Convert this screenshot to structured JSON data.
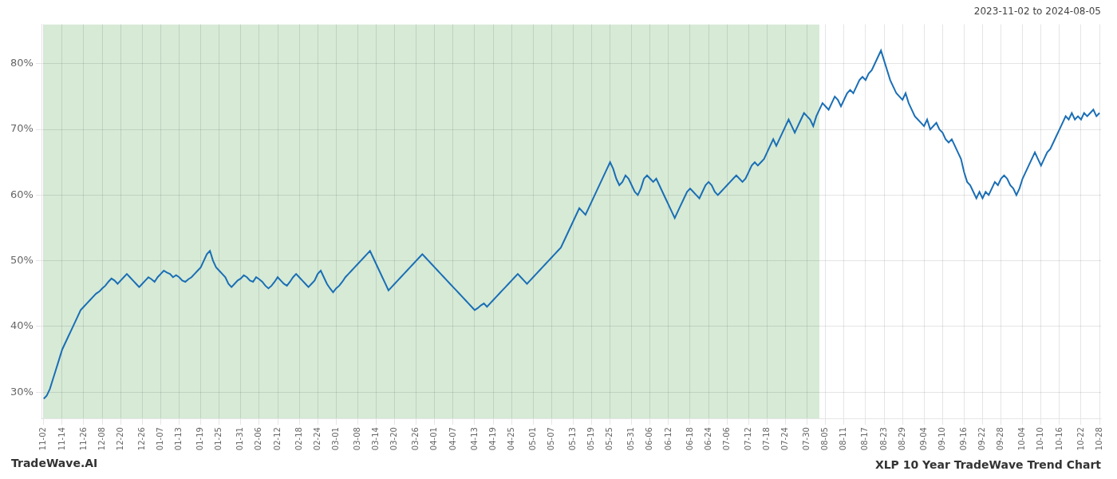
{
  "chart_data": {
    "type": "line",
    "title": "XLP 10 Year TradeWave Trend Chart",
    "subtitle": "2023-11-02 to 2024-08-05",
    "annotations": [
      "TradeWave.AI"
    ],
    "color": "#1a6eb5",
    "grid": true,
    "ylim": [
      26,
      86
    ],
    "yticks": [
      {
        "value": 30,
        "label": "30%"
      },
      {
        "value": 40,
        "label": "40%"
      },
      {
        "value": 50,
        "label": "50%"
      },
      {
        "value": 60,
        "label": "60%"
      },
      {
        "value": 70,
        "label": "70%"
      },
      {
        "value": 80,
        "label": "80%"
      }
    ],
    "shaded_region": {
      "from": 0,
      "to": 252,
      "color": "#d6ead6"
    },
    "categories": [
      "11-02",
      null,
      null,
      null,
      null,
      null,
      "11-14",
      null,
      null,
      null,
      null,
      null,
      null,
      "11-26",
      null,
      null,
      null,
      null,
      null,
      "12-08",
      null,
      null,
      null,
      null,
      null,
      "12-20",
      null,
      null,
      null,
      null,
      null,
      null,
      "12-26",
      null,
      null,
      null,
      null,
      null,
      "01-07",
      null,
      null,
      null,
      null,
      null,
      "01-13",
      null,
      null,
      null,
      null,
      null,
      null,
      "01-19",
      null,
      null,
      null,
      null,
      null,
      "01-25",
      null,
      null,
      null,
      null,
      null,
      null,
      "01-31",
      null,
      null,
      null,
      null,
      null,
      "02-06",
      null,
      null,
      null,
      null,
      null,
      "02-12",
      null,
      null,
      null,
      null,
      null,
      null,
      "02-18",
      null,
      null,
      null,
      null,
      null,
      "02-24",
      null,
      null,
      null,
      null,
      null,
      "03-01",
      null,
      null,
      null,
      null,
      null,
      null,
      "03-08",
      null,
      null,
      null,
      null,
      null,
      "03-14",
      null,
      null,
      null,
      null,
      null,
      "03-20",
      null,
      null,
      null,
      null,
      null,
      null,
      "03-26",
      null,
      null,
      null,
      null,
      null,
      "04-01",
      null,
      null,
      null,
      null,
      null,
      "04-07",
      null,
      null,
      null,
      null,
      null,
      null,
      "04-13",
      null,
      null,
      null,
      null,
      null,
      "04-19",
      null,
      null,
      null,
      null,
      null,
      "04-25",
      null,
      null,
      null,
      null,
      null,
      null,
      "05-01",
      null,
      null,
      null,
      null,
      null,
      "05-07",
      null,
      null,
      null,
      null,
      null,
      null,
      "05-13",
      null,
      null,
      null,
      null,
      null,
      "05-19",
      null,
      null,
      null,
      null,
      null,
      "05-25",
      null,
      null,
      null,
      null,
      null,
      null,
      "05-31",
      null,
      null,
      null,
      null,
      null,
      "06-06",
      null,
      null,
      null,
      null,
      null,
      "06-12",
      null,
      null,
      null,
      null,
      null,
      null,
      "06-18",
      null,
      null,
      null,
      null,
      null,
      "06-24",
      null,
      null,
      null,
      null,
      null,
      "07-06",
      null,
      null,
      null,
      null,
      null,
      null,
      "07-12",
      null,
      null,
      null,
      null,
      null,
      "07-18",
      null,
      null,
      null,
      null,
      null,
      "07-24",
      null,
      null,
      null,
      null,
      null,
      null,
      "07-30",
      null,
      null,
      null,
      null,
      null,
      "08-05",
      null,
      null,
      null,
      null,
      null,
      "08-11",
      null,
      null,
      null,
      null,
      null,
      null,
      "08-17",
      null,
      null,
      null,
      null,
      null,
      "08-23",
      null,
      null,
      null,
      null,
      null,
      "08-29",
      null,
      null,
      null,
      null,
      null,
      null,
      "09-04",
      null,
      null,
      null,
      null,
      null,
      "09-10",
      null,
      null,
      null,
      null,
      null,
      null,
      "09-16",
      null,
      null,
      null,
      null,
      null,
      "09-22",
      null,
      null,
      null,
      null,
      null,
      "09-28",
      null,
      null,
      null,
      null,
      null,
      null,
      "10-04",
      null,
      null,
      null,
      null,
      null,
      "10-10",
      null,
      null,
      null,
      null,
      null,
      "10-16",
      null,
      null,
      null,
      null,
      null,
      null,
      "10-22",
      null,
      null,
      null,
      null,
      null,
      "10-28"
    ],
    "values": [
      29.0,
      29.5,
      30.5,
      32.0,
      33.5,
      35.0,
      36.5,
      37.5,
      38.5,
      39.5,
      40.5,
      41.5,
      42.5,
      43.0,
      43.5,
      44.0,
      44.5,
      45.0,
      45.3,
      45.8,
      46.2,
      46.8,
      47.3,
      47.0,
      46.5,
      47.0,
      47.5,
      48.0,
      47.5,
      47.0,
      46.5,
      46.0,
      46.5,
      47.0,
      47.5,
      47.2,
      46.8,
      47.5,
      48.0,
      48.5,
      48.2,
      48.0,
      47.5,
      47.8,
      47.5,
      47.0,
      46.8,
      47.2,
      47.5,
      48.0,
      48.5,
      49.0,
      50.0,
      51.0,
      51.5,
      50.0,
      49.0,
      48.5,
      48.0,
      47.5,
      46.5,
      46.0,
      46.5,
      47.0,
      47.3,
      47.8,
      47.5,
      47.0,
      46.8,
      47.5,
      47.2,
      46.8,
      46.2,
      45.8,
      46.2,
      46.8,
      47.5,
      47.0,
      46.5,
      46.2,
      46.8,
      47.5,
      48.0,
      47.5,
      47.0,
      46.5,
      46.0,
      46.5,
      47.0,
      48.0,
      48.5,
      47.5,
      46.5,
      45.8,
      45.2,
      45.8,
      46.2,
      46.8,
      47.5,
      48.0,
      48.5,
      49.0,
      49.5,
      50.0,
      50.5,
      51.0,
      51.5,
      50.5,
      49.5,
      48.5,
      47.5,
      46.5,
      45.5,
      46.0,
      46.5,
      47.0,
      47.5,
      48.0,
      48.5,
      49.0,
      49.5,
      50.0,
      50.5,
      51.0,
      50.5,
      50.0,
      49.5,
      49.0,
      48.5,
      48.0,
      47.5,
      47.0,
      46.5,
      46.0,
      45.5,
      45.0,
      44.5,
      44.0,
      43.5,
      43.0,
      42.5,
      42.8,
      43.2,
      43.5,
      43.0,
      43.5,
      44.0,
      44.5,
      45.0,
      45.5,
      46.0,
      46.5,
      47.0,
      47.5,
      48.0,
      47.5,
      47.0,
      46.5,
      47.0,
      47.5,
      48.0,
      48.5,
      49.0,
      49.5,
      50.0,
      50.5,
      51.0,
      51.5,
      52.0,
      53.0,
      54.0,
      55.0,
      56.0,
      57.0,
      58.0,
      57.5,
      57.0,
      58.0,
      59.0,
      60.0,
      61.0,
      62.0,
      63.0,
      64.0,
      65.0,
      64.0,
      62.5,
      61.5,
      62.0,
      63.0,
      62.5,
      61.5,
      60.5,
      60.0,
      61.0,
      62.5,
      63.0,
      62.5,
      62.0,
      62.5,
      61.5,
      60.5,
      59.5,
      58.5,
      57.5,
      56.5,
      57.5,
      58.5,
      59.5,
      60.5,
      61.0,
      60.5,
      60.0,
      59.5,
      60.5,
      61.5,
      62.0,
      61.5,
      60.5,
      60.0,
      60.5,
      61.0,
      61.5,
      62.0,
      62.5,
      63.0,
      62.5,
      62.0,
      62.5,
      63.5,
      64.5,
      65.0,
      64.5,
      65.0,
      65.5,
      66.5,
      67.5,
      68.5,
      67.5,
      68.5,
      69.5,
      70.5,
      71.5,
      70.5,
      69.5,
      70.5,
      71.5,
      72.5,
      72.0,
      71.5,
      70.5,
      72.0,
      73.0,
      74.0,
      73.5,
      73.0,
      74.0,
      75.0,
      74.5,
      73.5,
      74.5,
      75.5,
      76.0,
      75.5,
      76.5,
      77.5,
      78.0,
      77.5,
      78.5,
      79.0,
      80.0,
      81.0,
      82.0,
      80.5,
      79.0,
      77.5,
      76.5,
      75.5,
      75.0,
      74.5,
      75.5,
      74.0,
      73.0,
      72.0,
      71.5,
      71.0,
      70.5,
      71.5,
      70.0,
      70.5,
      71.0,
      70.0,
      69.5,
      68.5,
      68.0,
      68.5,
      67.5,
      66.5,
      65.5,
      63.5,
      62.0,
      61.5,
      60.5,
      59.5,
      60.5,
      59.5,
      60.5,
      60.0,
      61.0,
      62.0,
      61.5,
      62.5,
      63.0,
      62.5,
      61.5,
      61.0,
      60.0,
      61.0,
      62.5,
      63.5,
      64.5,
      65.5,
      66.5,
      65.5,
      64.5,
      65.5,
      66.5,
      67.0,
      68.0,
      69.0,
      70.0,
      71.0,
      72.0,
      71.5,
      72.5,
      71.5,
      72.0,
      71.5,
      72.5,
      72.0,
      72.5,
      73.0,
      72.0,
      72.5
    ]
  }
}
